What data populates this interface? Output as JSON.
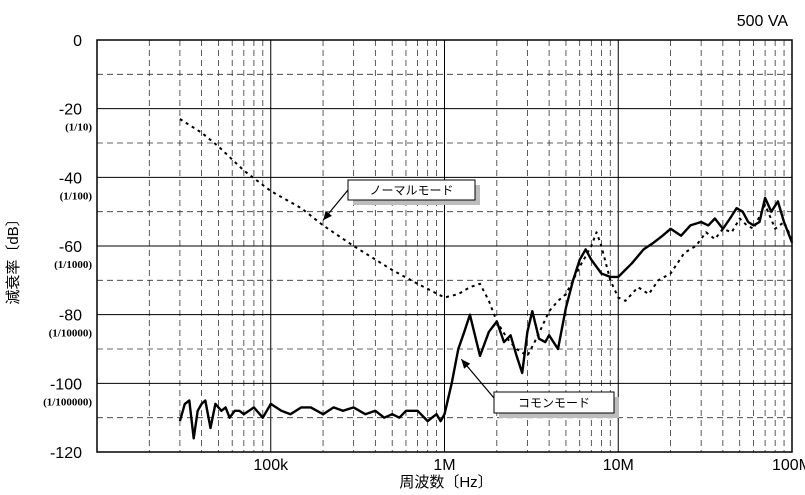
{
  "chart_data": {
    "type": "line",
    "title": "",
    "corner_label": "500 VA",
    "xlabel": "周波数〔Hz〕",
    "ylabel": "減衰率〔dB〕",
    "xscale": "log",
    "xlim": [
      10000,
      100000000
    ],
    "ylim": [
      -120,
      0
    ],
    "y_ticks": [
      {
        "value": 0,
        "label": "0",
        "sub": ""
      },
      {
        "value": -20,
        "label": "-20",
        "sub": "(1/10)"
      },
      {
        "value": -40,
        "label": "-40",
        "sub": "(1/100)"
      },
      {
        "value": -60,
        "label": "-60",
        "sub": "(1/1000)"
      },
      {
        "value": -80,
        "label": "-80",
        "sub": "(1/10000)"
      },
      {
        "value": -100,
        "label": "-100",
        "sub": "(1/100000)"
      },
      {
        "value": -120,
        "label": "-120",
        "sub": ""
      }
    ],
    "x_ticks": [
      {
        "value": 100000,
        "label": "100k"
      },
      {
        "value": 1000000,
        "label": "1M"
      },
      {
        "value": 10000000,
        "label": "10M"
      },
      {
        "value": 100000000,
        "label": "100M"
      }
    ],
    "grid": true,
    "series": [
      {
        "name": "コモンモード",
        "style": "solid",
        "annotation": "コモンモード",
        "x": [
          30000,
          32000,
          34000,
          36000,
          38000,
          40000,
          42000,
          45000,
          48000,
          52000,
          55000,
          58000,
          62000,
          66000,
          70000,
          75000,
          80000,
          90000,
          100000,
          115000,
          130000,
          150000,
          170000,
          200000,
          230000,
          260000,
          300000,
          350000,
          400000,
          450000,
          500000,
          550000,
          600000,
          700000,
          800000,
          900000,
          950000,
          1000000,
          1100000,
          1200000,
          1300000,
          1400000,
          1600000,
          1800000,
          2000000,
          2200000,
          2400000,
          2600000,
          2800000,
          3000000,
          3200000,
          3500000,
          3800000,
          4000000,
          4500000,
          5000000,
          5500000,
          6000000,
          6500000,
          7000000,
          8000000,
          9000000,
          10000000,
          12000000,
          14000000,
          16000000,
          18000000,
          20000000,
          23000000,
          26000000,
          30000000,
          33000000,
          36000000,
          40000000,
          44000000,
          48000000,
          52000000,
          56000000,
          60000000,
          65000000,
          70000000,
          76000000,
          83000000,
          90000000,
          100000000
        ],
        "y": [
          -111,
          -106,
          -105,
          -116,
          -108,
          -106,
          -105,
          -113,
          -106,
          -108,
          -107,
          -110,
          -108,
          -108,
          -109,
          -108,
          -107,
          -110,
          -106,
          -108,
          -109,
          -107,
          -107,
          -109,
          -107,
          -108,
          -107,
          -109,
          -108,
          -110,
          -109,
          -110,
          -108,
          -108,
          -111,
          -109,
          -111,
          -109,
          -100,
          -90,
          -85,
          -80,
          -92,
          -85,
          -82,
          -88,
          -86,
          -92,
          -97,
          -85,
          -79,
          -87,
          -88,
          -86,
          -90,
          -78,
          -70,
          -64,
          -61,
          -64,
          -68,
          -69,
          -69,
          -65,
          -61,
          -59,
          -57,
          -55,
          -57,
          -54,
          -53,
          -54,
          -52,
          -55,
          -52,
          -49,
          -50,
          -53,
          -54,
          -53,
          -46,
          -50,
          -47,
          -53,
          -59
        ]
      },
      {
        "name": "ノーマルモード",
        "style": "dotted",
        "annotation": "ノーマルモード",
        "x": [
          30000,
          40000,
          50000,
          70000,
          100000,
          150000,
          200000,
          300000,
          500000,
          700000,
          1000000,
          1200000,
          1400000,
          1600000,
          1800000,
          2000000,
          2300000,
          2600000,
          3000000,
          3300000,
          3600000,
          4000000,
          4500000,
          5000000,
          5500000,
          6000000,
          6500000,
          7000000,
          7500000,
          8000000,
          9000000,
          10000000,
          11000000,
          13000000,
          15000000,
          17000000,
          20000000,
          24000000,
          28000000,
          32000000,
          36000000,
          40000000,
          45000000,
          50000000,
          55000000,
          60000000,
          70000000,
          80000000,
          90000000,
          100000000
        ],
        "y": [
          -23,
          -27,
          -31,
          -38,
          -44,
          -49,
          -54,
          -60,
          -67,
          -71,
          -75,
          -74,
          -72,
          -71,
          -76,
          -82,
          -87,
          -90,
          -92,
          -88,
          -84,
          -79,
          -76,
          -74,
          -70,
          -66,
          -63,
          -60,
          -56,
          -60,
          -70,
          -75,
          -76,
          -72,
          -74,
          -70,
          -68,
          -62,
          -60,
          -56,
          -58,
          -55,
          -56,
          -52,
          -54,
          -55,
          -48,
          -55,
          -53,
          -58
        ]
      }
    ]
  }
}
